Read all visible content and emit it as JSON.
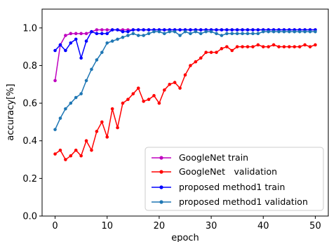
{
  "chart_data": {
    "type": "line",
    "title": "",
    "xlabel": "epoch",
    "ylabel": "accuracy[%]",
    "xlim": [
      -2.5,
      52.5
    ],
    "ylim": [
      0.0,
      1.1
    ],
    "xticks": [
      "0",
      "10",
      "20",
      "30",
      "40",
      "50"
    ],
    "yticks": [
      "0.0",
      "0.2",
      "0.4",
      "0.6",
      "0.8",
      "1.0"
    ],
    "grid": false,
    "legend_position": "lower-right",
    "series": [
      {
        "name": "GoogleNet train",
        "color": "#bf00bf",
        "x": [
          0,
          1,
          2,
          3,
          4,
          5,
          6,
          7,
          8,
          9,
          10,
          11,
          12,
          13,
          14,
          15,
          16,
          17,
          18,
          19,
          20,
          21,
          22,
          23,
          24,
          25,
          26,
          27,
          28,
          29,
          30,
          31,
          32,
          33,
          34,
          35,
          36,
          37,
          38,
          39,
          40,
          41,
          42,
          43,
          44,
          45,
          46,
          47,
          48,
          49,
          50
        ],
        "values": [
          0.72,
          0.91,
          0.96,
          0.97,
          0.97,
          0.97,
          0.97,
          0.98,
          0.99,
          0.99,
          0.99,
          0.99,
          0.99,
          0.99,
          0.99,
          0.99,
          0.99,
          0.99,
          0.99,
          0.99,
          0.99,
          0.99,
          0.99,
          0.99,
          0.99,
          0.99,
          0.99,
          0.99,
          0.99,
          0.99,
          0.99,
          0.99,
          0.99,
          0.99,
          0.99,
          0.99,
          0.99,
          0.99,
          0.99,
          0.99,
          0.99,
          0.99,
          0.99,
          0.99,
          0.99,
          0.99,
          0.99,
          0.99,
          0.99,
          0.99,
          0.99
        ]
      },
      {
        "name": "GoogleNet　validation",
        "color": "#ff0000",
        "x": [
          0,
          1,
          2,
          3,
          4,
          5,
          6,
          7,
          8,
          9,
          10,
          11,
          12,
          13,
          14,
          15,
          16,
          17,
          18,
          19,
          20,
          21,
          22,
          23,
          24,
          25,
          26,
          27,
          28,
          29,
          30,
          31,
          32,
          33,
          34,
          35,
          36,
          37,
          38,
          39,
          40,
          41,
          42,
          43,
          44,
          45,
          46,
          47,
          48,
          49,
          50
        ],
        "values": [
          0.33,
          0.35,
          0.3,
          0.32,
          0.35,
          0.32,
          0.4,
          0.35,
          0.45,
          0.5,
          0.42,
          0.57,
          0.47,
          0.6,
          0.62,
          0.65,
          0.68,
          0.61,
          0.62,
          0.64,
          0.6,
          0.67,
          0.7,
          0.71,
          0.68,
          0.75,
          0.8,
          0.82,
          0.84,
          0.87,
          0.87,
          0.87,
          0.89,
          0.9,
          0.88,
          0.9,
          0.9,
          0.9,
          0.9,
          0.91,
          0.9,
          0.9,
          0.91,
          0.9,
          0.9,
          0.9,
          0.9,
          0.9,
          0.91,
          0.9,
          0.91
        ]
      },
      {
        "name": "proposed method1 train",
        "color": "#0000ff",
        "x": [
          0,
          1,
          2,
          3,
          4,
          5,
          6,
          7,
          8,
          9,
          10,
          11,
          12,
          13,
          14,
          15,
          16,
          17,
          18,
          19,
          20,
          21,
          22,
          23,
          24,
          25,
          26,
          27,
          28,
          29,
          30,
          31,
          32,
          33,
          34,
          35,
          36,
          37,
          38,
          39,
          40,
          41,
          42,
          43,
          44,
          45,
          46,
          47,
          48,
          49,
          50
        ],
        "values": [
          0.88,
          0.91,
          0.88,
          0.92,
          0.94,
          0.84,
          0.93,
          0.98,
          0.97,
          0.97,
          0.97,
          0.99,
          0.99,
          0.98,
          0.98,
          0.99,
          0.99,
          0.99,
          0.99,
          0.99,
          0.99,
          0.99,
          0.99,
          0.99,
          0.99,
          0.99,
          0.99,
          0.99,
          0.99,
          0.99,
          0.99,
          0.99,
          0.99,
          0.99,
          0.99,
          0.99,
          0.99,
          0.99,
          0.99,
          0.99,
          0.99,
          0.99,
          0.99,
          0.99,
          0.99,
          0.99,
          0.99,
          0.99,
          0.99,
          0.99,
          0.99
        ]
      },
      {
        "name": "proposed method1 validation",
        "color": "#1f77b4",
        "x": [
          0,
          1,
          2,
          3,
          4,
          5,
          6,
          7,
          8,
          9,
          10,
          11,
          12,
          13,
          14,
          15,
          16,
          17,
          18,
          19,
          20,
          21,
          22,
          23,
          24,
          25,
          26,
          27,
          28,
          29,
          30,
          31,
          32,
          33,
          34,
          35,
          36,
          37,
          38,
          39,
          40,
          41,
          42,
          43,
          44,
          45,
          46,
          47,
          48,
          49,
          50
        ],
        "values": [
          0.46,
          0.52,
          0.57,
          0.6,
          0.63,
          0.65,
          0.72,
          0.78,
          0.83,
          0.87,
          0.92,
          0.93,
          0.94,
          0.95,
          0.96,
          0.97,
          0.96,
          0.96,
          0.97,
          0.98,
          0.98,
          0.97,
          0.98,
          0.98,
          0.96,
          0.98,
          0.97,
          0.98,
          0.97,
          0.98,
          0.98,
          0.97,
          0.96,
          0.97,
          0.97,
          0.97,
          0.97,
          0.97,
          0.97,
          0.97,
          0.98,
          0.98,
          0.98,
          0.98,
          0.98,
          0.98,
          0.98,
          0.98,
          0.98,
          0.98,
          0.98
        ]
      }
    ]
  }
}
